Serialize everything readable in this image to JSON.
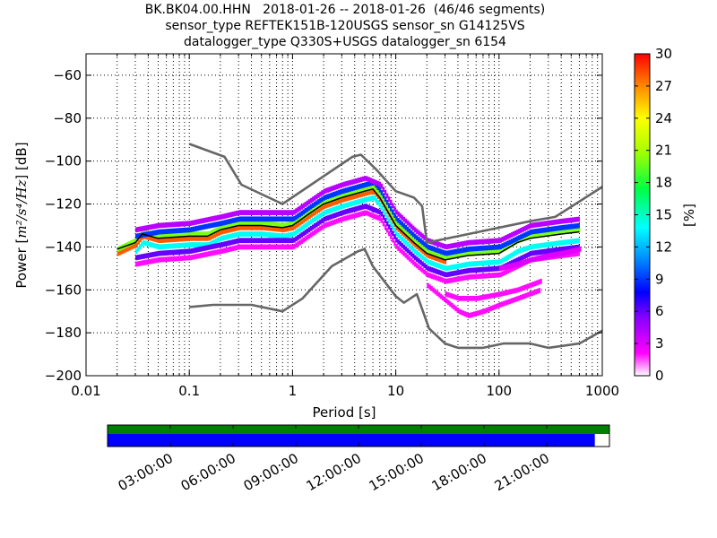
{
  "title_lines": [
    "BK.BK04.00.HHN   2018-01-26 -- 2018-01-26  (46/46 segments)",
    "sensor_type REFTEK151B-120USGS sensor_sn G14125VS",
    "datalogger_type Q330S+USGS datalogger_sn 6154"
  ],
  "chart_data": {
    "type": "heatmap",
    "xlabel": "Period [s]",
    "ylabel_prefix": "Power [",
    "ylabel_units": "m²/s⁴/Hz",
    "ylabel_suffix": "] [dB]",
    "x_scale": "log",
    "xlim": [
      0.01,
      1000
    ],
    "ylim": [
      -200,
      -50
    ],
    "x_ticks": [
      {
        "value": 0.01,
        "label": "0.01"
      },
      {
        "value": 0.1,
        "label": "0.1"
      },
      {
        "value": 1,
        "label": "1"
      },
      {
        "value": 10,
        "label": "10"
      },
      {
        "value": 100,
        "label": "100"
      },
      {
        "value": 1000,
        "label": "1000"
      }
    ],
    "y_ticks": [
      {
        "value": -60,
        "label": "−60"
      },
      {
        "value": -80,
        "label": "−80"
      },
      {
        "value": -100,
        "label": "−100"
      },
      {
        "value": -120,
        "label": "−120"
      },
      {
        "value": -140,
        "label": "−140"
      },
      {
        "value": -160,
        "label": "−160"
      },
      {
        "value": -180,
        "label": "−180"
      },
      {
        "value": -200,
        "label": "−200"
      }
    ],
    "grid": true,
    "colorbar": {
      "label": "[%]",
      "min": 0,
      "max": 30,
      "ticks": [
        {
          "value": 0,
          "label": "0"
        },
        {
          "value": 3,
          "label": "3"
        },
        {
          "value": 6,
          "label": "6"
        },
        {
          "value": 9,
          "label": "9"
        },
        {
          "value": 12,
          "label": "12"
        },
        {
          "value": 15,
          "label": "15"
        },
        {
          "value": 18,
          "label": "18"
        },
        {
          "value": 21,
          "label": "21"
        },
        {
          "value": 24,
          "label": "24"
        },
        {
          "value": 27,
          "label": "27"
        },
        {
          "value": 30,
          "label": "30"
        }
      ]
    },
    "noise_models": [
      {
        "id": "nhnm",
        "color": "#666666",
        "points": [
          [
            0.1,
            -92
          ],
          [
            0.22,
            -98
          ],
          [
            0.32,
            -111
          ],
          [
            0.8,
            -120
          ],
          [
            3.8,
            -98
          ],
          [
            4.6,
            -97
          ],
          [
            6.5,
            -104
          ],
          [
            10,
            -114
          ],
          [
            15,
            -117
          ],
          [
            18,
            -121
          ],
          [
            20,
            -138
          ],
          [
            100,
            -131
          ],
          [
            200,
            -128
          ],
          [
            350,
            -126
          ],
          [
            1000,
            -112
          ]
        ]
      },
      {
        "id": "nlnm",
        "color": "#666666",
        "points": [
          [
            0.1,
            -168
          ],
          [
            0.17,
            -167
          ],
          [
            0.4,
            -167
          ],
          [
            0.8,
            -170
          ],
          [
            1.25,
            -164
          ],
          [
            2.4,
            -149
          ],
          [
            4.3,
            -142
          ],
          [
            5,
            -141
          ],
          [
            6,
            -149
          ],
          [
            10,
            -163
          ],
          [
            12,
            -166
          ],
          [
            16,
            -162
          ],
          [
            21,
            -178
          ],
          [
            30,
            -185
          ],
          [
            40,
            -187
          ],
          [
            70,
            -187
          ],
          [
            110,
            -185
          ],
          [
            200,
            -185
          ],
          [
            300,
            -187
          ],
          [
            600,
            -185
          ],
          [
            1000,
            -179
          ]
        ]
      }
    ],
    "mode_line": {
      "color": "#000000",
      "points": [
        [
          0.02,
          -141
        ],
        [
          0.03,
          -138
        ],
        [
          0.035,
          -134
        ],
        [
          0.05,
          -136
        ],
        [
          0.1,
          -135
        ],
        [
          0.15,
          -135
        ],
        [
          0.2,
          -132
        ],
        [
          0.3,
          -130
        ],
        [
          0.5,
          -130
        ],
        [
          0.8,
          -131
        ],
        [
          1,
          -130
        ],
        [
          1.5,
          -124
        ],
        [
          2,
          -120
        ],
        [
          3,
          -117
        ],
        [
          5,
          -114
        ],
        [
          6,
          -113
        ],
        [
          7,
          -117
        ],
        [
          10,
          -130
        ],
        [
          15,
          -138
        ],
        [
          20,
          -143
        ],
        [
          30,
          -146
        ],
        [
          50,
          -144
        ],
        [
          100,
          -143
        ],
        [
          150,
          -138
        ],
        [
          200,
          -136
        ],
        [
          400,
          -134
        ],
        [
          600,
          -133
        ]
      ]
    },
    "percent_bands": [
      {
        "percent": 28,
        "offset": 0,
        "points": [
          [
            0.02,
            -143
          ],
          [
            0.03,
            -139
          ],
          [
            0.035,
            -135
          ],
          [
            0.05,
            -137
          ],
          [
            0.1,
            -136
          ],
          [
            0.15,
            -136
          ],
          [
            0.2,
            -133
          ],
          [
            0.3,
            -131
          ],
          [
            0.5,
            -131
          ],
          [
            0.8,
            -132
          ],
          [
            1,
            -131
          ],
          [
            1.5,
            -125
          ],
          [
            2,
            -121
          ],
          [
            3,
            -118
          ],
          [
            5,
            -115
          ],
          [
            6,
            -114
          ],
          [
            7,
            -118
          ],
          [
            10,
            -131
          ],
          [
            15,
            -139
          ],
          [
            20,
            -144
          ],
          [
            30,
            -147
          ]
        ]
      },
      {
        "percent": 20,
        "offset": 2,
        "points": [
          [
            0.02,
            -143
          ],
          [
            0.03,
            -139
          ],
          [
            0.035,
            -135
          ],
          [
            0.05,
            -137
          ],
          [
            0.1,
            -136
          ],
          [
            0.15,
            -136
          ],
          [
            0.2,
            -133
          ],
          [
            0.3,
            -131
          ],
          [
            0.5,
            -131
          ],
          [
            0.8,
            -132
          ],
          [
            1,
            -131
          ],
          [
            1.5,
            -125
          ],
          [
            2,
            -121
          ],
          [
            3,
            -118
          ],
          [
            5,
            -115
          ],
          [
            6,
            -114
          ],
          [
            7,
            -118
          ],
          [
            10,
            -131
          ],
          [
            15,
            -139
          ],
          [
            20,
            -144
          ],
          [
            30,
            -147
          ],
          [
            50,
            -145
          ],
          [
            100,
            -144
          ],
          [
            150,
            -139
          ],
          [
            200,
            -137
          ],
          [
            400,
            -135
          ],
          [
            600,
            -134
          ]
        ]
      },
      {
        "percent": 14,
        "offset": -3,
        "points": [
          [
            0.03,
            -139
          ],
          [
            0.035,
            -135
          ],
          [
            0.05,
            -137
          ],
          [
            0.1,
            -136
          ],
          [
            0.15,
            -136
          ],
          [
            0.2,
            -133
          ],
          [
            0.3,
            -131
          ],
          [
            0.5,
            -131
          ],
          [
            0.8,
            -132
          ],
          [
            1,
            -131
          ],
          [
            1.5,
            -125
          ],
          [
            2,
            -121
          ],
          [
            3,
            -118
          ],
          [
            5,
            -115
          ],
          [
            6,
            -114
          ],
          [
            7,
            -118
          ],
          [
            10,
            -131
          ],
          [
            15,
            -139
          ],
          [
            20,
            -144
          ],
          [
            30,
            -147
          ],
          [
            50,
            -145
          ],
          [
            100,
            -144
          ],
          [
            150,
            -139
          ],
          [
            200,
            -137
          ],
          [
            400,
            -135
          ],
          [
            600,
            -134
          ]
        ]
      },
      {
        "percent": 9,
        "offset": 4,
        "points": [
          [
            0.03,
            -139
          ],
          [
            0.05,
            -137
          ],
          [
            0.1,
            -136
          ],
          [
            0.2,
            -133
          ],
          [
            0.3,
            -131
          ],
          [
            0.5,
            -131
          ],
          [
            1,
            -131
          ],
          [
            1.5,
            -125
          ],
          [
            2,
            -121
          ],
          [
            3,
            -118
          ],
          [
            5,
            -115
          ],
          [
            6,
            -114
          ],
          [
            7,
            -118
          ],
          [
            10,
            -131
          ],
          [
            15,
            -139
          ],
          [
            20,
            -144
          ],
          [
            30,
            -147
          ],
          [
            50,
            -145
          ],
          [
            100,
            -144
          ],
          [
            200,
            -137
          ],
          [
            400,
            -135
          ],
          [
            600,
            -134
          ]
        ]
      },
      {
        "percent": 6,
        "offset": -6,
        "points": [
          [
            0.03,
            -139
          ],
          [
            0.05,
            -137
          ],
          [
            0.1,
            -136
          ],
          [
            0.2,
            -133
          ],
          [
            0.3,
            -131
          ],
          [
            0.5,
            -131
          ],
          [
            1,
            -131
          ],
          [
            2,
            -121
          ],
          [
            3,
            -118
          ],
          [
            5,
            -115
          ],
          [
            7,
            -118
          ],
          [
            10,
            -131
          ],
          [
            15,
            -139
          ],
          [
            20,
            -144
          ],
          [
            30,
            -147
          ],
          [
            50,
            -145
          ],
          [
            100,
            -144
          ],
          [
            200,
            -137
          ],
          [
            400,
            -135
          ],
          [
            600,
            -134
          ]
        ]
      },
      {
        "percent": 4,
        "offset": 7,
        "points": [
          [
            0.03,
            -139
          ],
          [
            0.05,
            -137
          ],
          [
            0.1,
            -136
          ],
          [
            0.2,
            -133
          ],
          [
            0.3,
            -131
          ],
          [
            0.5,
            -131
          ],
          [
            1,
            -131
          ],
          [
            2,
            -121
          ],
          [
            3,
            -118
          ],
          [
            5,
            -115
          ],
          [
            7,
            -118
          ],
          [
            10,
            -131
          ],
          [
            15,
            -139
          ],
          [
            20,
            -144
          ],
          [
            30,
            -147
          ],
          [
            50,
            -145
          ],
          [
            100,
            -144
          ],
          [
            200,
            -137
          ],
          [
            400,
            -135
          ],
          [
            600,
            -134
          ]
        ]
      },
      {
        "percent": 2,
        "offset": -9,
        "points": [
          [
            0.03,
            -139
          ],
          [
            0.05,
            -137
          ],
          [
            0.1,
            -136
          ],
          [
            0.2,
            -133
          ],
          [
            0.3,
            -131
          ],
          [
            0.5,
            -131
          ],
          [
            1,
            -131
          ],
          [
            2,
            -121
          ],
          [
            3,
            -118
          ],
          [
            5,
            -115
          ],
          [
            7,
            -118
          ],
          [
            10,
            -131
          ],
          [
            15,
            -139
          ],
          [
            20,
            -144
          ],
          [
            30,
            -147
          ],
          [
            50,
            -145
          ],
          [
            100,
            -144
          ],
          [
            200,
            -137
          ],
          [
            400,
            -135
          ],
          [
            600,
            -134
          ]
        ]
      },
      {
        "percent": 2,
        "offset": 0,
        "points": [
          [
            20,
            -158
          ],
          [
            30,
            -165
          ],
          [
            40,
            -170
          ],
          [
            50,
            -172
          ],
          [
            70,
            -170
          ],
          [
            100,
            -167
          ],
          [
            150,
            -164
          ],
          [
            250,
            -160
          ]
        ]
      },
      {
        "percent": 2,
        "offset": 0,
        "points": [
          [
            30,
            -162
          ],
          [
            40,
            -164
          ],
          [
            60,
            -164
          ],
          [
            100,
            -162
          ],
          [
            150,
            -160
          ],
          [
            250,
            -156
          ]
        ]
      },
      {
        "percent": 3,
        "offset": 0,
        "points": [
          [
            100,
            -150
          ],
          [
            150,
            -148
          ],
          [
            200,
            -146
          ],
          [
            300,
            -144
          ],
          [
            400,
            -143
          ],
          [
            600,
            -141
          ]
        ]
      }
    ],
    "timeline": {
      "ticks": [
        {
          "hour": 3,
          "label": "03:00:00"
        },
        {
          "hour": 6,
          "label": "06:00:00"
        },
        {
          "hour": 9,
          "label": "09:00:00"
        },
        {
          "hour": 12,
          "label": "12:00:00"
        },
        {
          "hour": 15,
          "label": "15:00:00"
        },
        {
          "hour": 18,
          "label": "18:00:00"
        },
        {
          "hour": 21,
          "label": "21:00:00"
        }
      ],
      "span_hours": 24,
      "data_coverage": [
        [
          0,
          23.3
        ]
      ],
      "psd_coverage": [
        [
          0,
          24
        ]
      ],
      "data_color": "#0000ff",
      "psd_color": "#008000"
    }
  }
}
